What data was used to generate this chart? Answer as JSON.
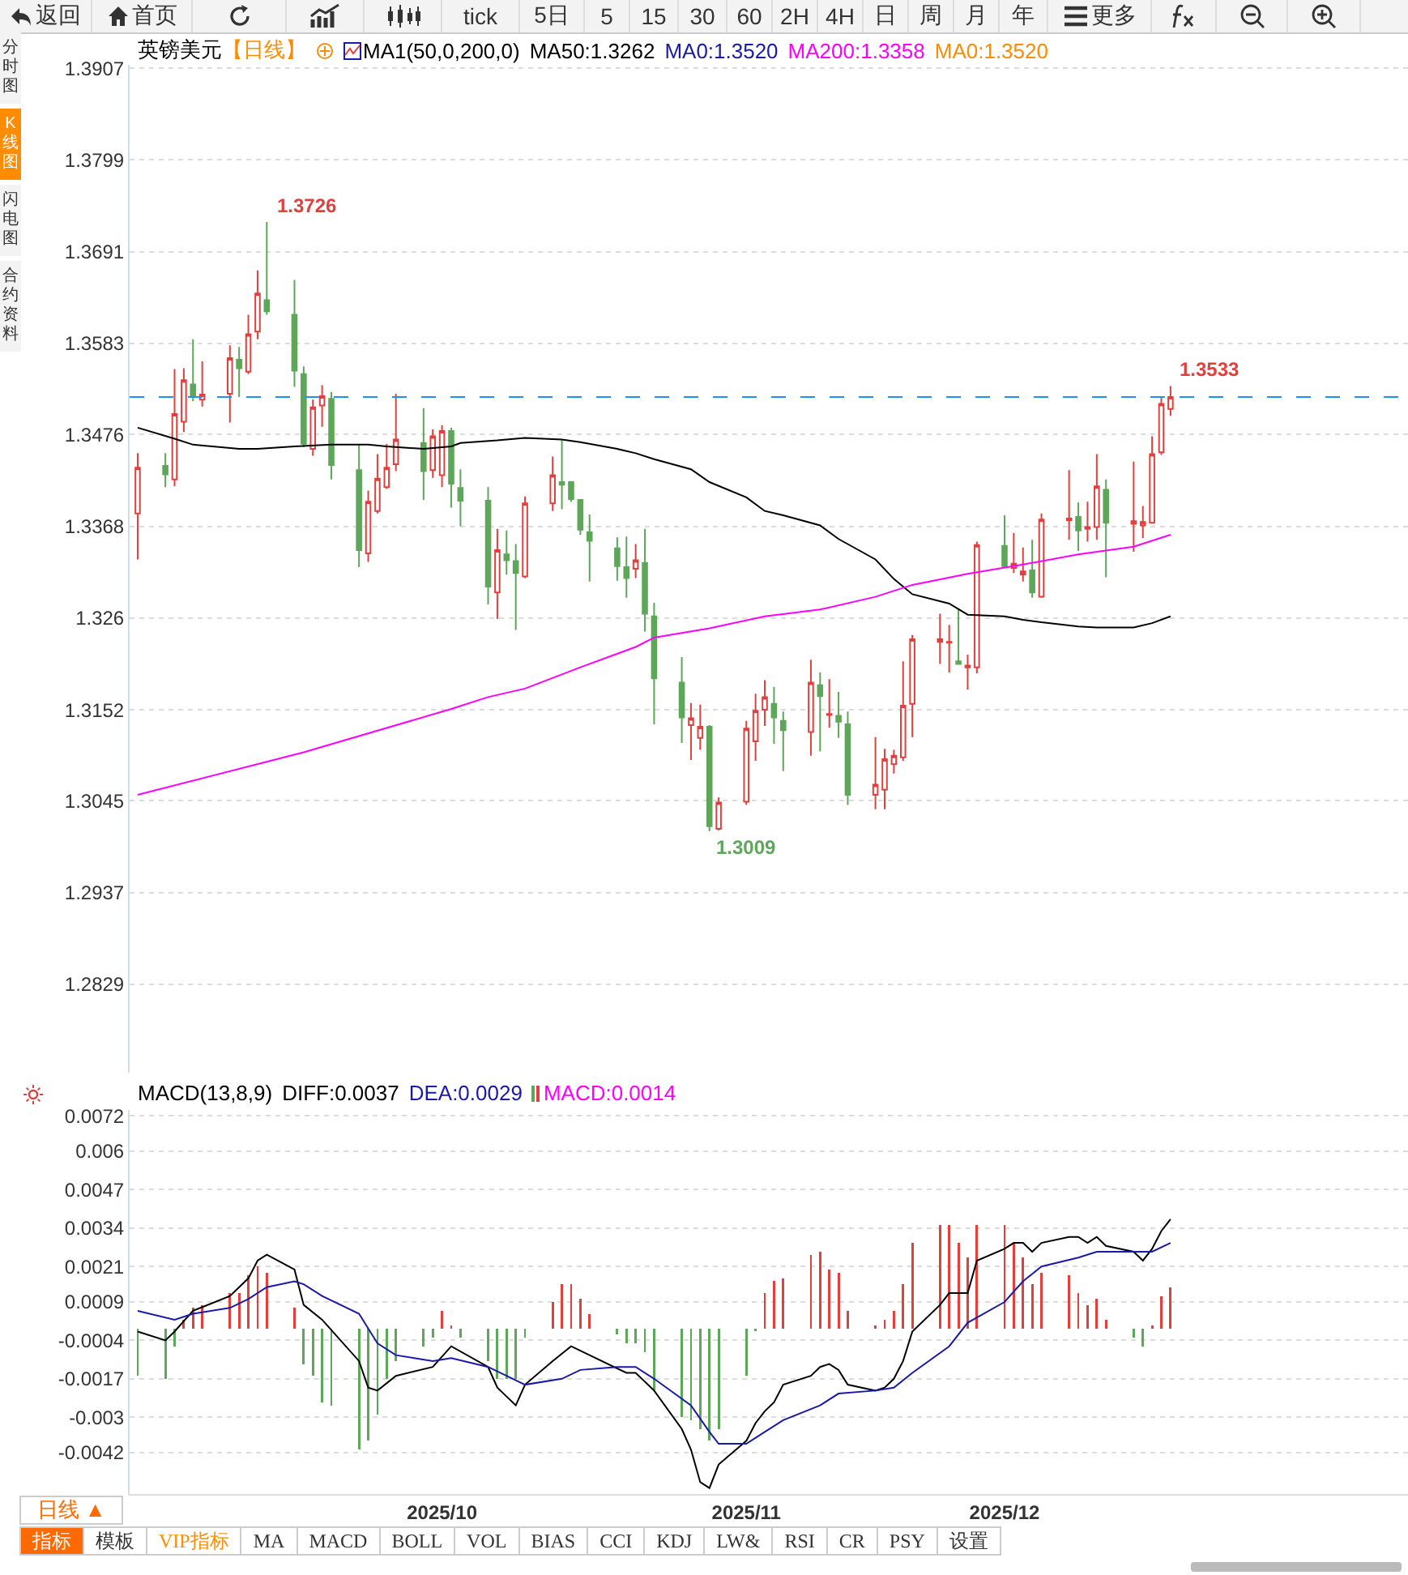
{
  "chart_data": [
    {
      "type": "other",
      "annotations": [
        "返回",
        "首页",
        "tick",
        "5日",
        "5",
        "15",
        "30",
        "60",
        "2H",
        "4H",
        "日",
        "周",
        "月",
        "年",
        "更多"
      ]
    },
    {
      "type": "other",
      "annotations": [
        "分时图",
        "K线图",
        "闪电图",
        "合约资料"
      ]
    },
    {
      "type": "candlestick",
      "title": "英镑美元",
      "subtitle": "【日线】",
      "legend_title": "MA1(50,0,200,0)",
      "legend": "top left",
      "grid": "y",
      "tick_labels": "y",
      "annotations": [
        "MA0:1.3520",
        "MA0:1.3520",
        {
          "text": "1.3726",
          "x": "2025-09-12",
          "y": 1.3726
        },
        {
          "text": "1.3533",
          "x": "2025-12-19",
          "y": 1.3533
        },
        {
          "text": "1.3009",
          "x": "2025-10-30",
          "y": 1.3009
        }
      ],
      "ref_lines": [
        {
          "axis": "y",
          "value": 1.352,
          "color": "#1e90ff",
          "line_style": "dashed"
        }
      ],
      "xlim": [
        "2025-08-28T03:00",
        "2026-01-13T18:00"
      ],
      "ylim": [
        1.2725,
        1.3911
      ],
      "yticks": [
        1.3907,
        1.3799,
        1.3691,
        1.3583,
        1.3476,
        1.3368,
        1.326,
        1.3152,
        1.3045,
        1.2937,
        1.2829
      ],
      "series": [
        {
          "name": "MA50:1.3262",
          "type": "line",
          "color": "#000000",
          "x": [
            "2025-08-29",
            "2025-09-02",
            "2025-09-04",
            "2025-09-09",
            "2025-09-11",
            "2025-09-15",
            "2025-09-19",
            "2025-09-23",
            "2025-09-25",
            "2025-09-29",
            "2025-10-02",
            "2025-10-03",
            "2025-10-07",
            "2025-10-10",
            "2025-10-14",
            "2025-10-16",
            "2025-10-20",
            "2025-10-22",
            "2025-10-24",
            "2025-10-28",
            "2025-10-30",
            "2025-11-03",
            "2025-11-05",
            "2025-11-07",
            "2025-11-11",
            "2025-11-13",
            "2025-11-17",
            "2025-11-19",
            "2025-11-21",
            "2025-11-25",
            "2025-11-27",
            "2025-12-01",
            "2025-12-03",
            "2025-12-05",
            "2025-12-09",
            "2025-12-11",
            "2025-12-15",
            "2025-12-17",
            "2025-12-19"
          ],
          "values": [
            1.3484,
            1.3471,
            1.3464,
            1.3459,
            1.3459,
            1.3462,
            1.3464,
            1.3464,
            1.3462,
            1.3459,
            1.3462,
            1.3466,
            1.3469,
            1.3472,
            1.347,
            1.3467,
            1.3459,
            1.3454,
            1.3447,
            1.3435,
            1.342,
            1.3402,
            1.3386,
            1.3381,
            1.3369,
            1.3353,
            1.3329,
            1.3306,
            1.3288,
            1.3277,
            1.3264,
            1.3262,
            1.3258,
            1.3255,
            1.325,
            1.3249,
            1.3249,
            1.3254,
            1.3262
          ]
        },
        {
          "name": "MA200:1.3358",
          "type": "line",
          "color": "#ff00ff",
          "x": [
            "2025-08-29",
            "2025-09-16",
            "2025-10-02",
            "2025-10-06",
            "2025-10-10",
            "2025-10-16",
            "2025-10-22",
            "2025-10-24",
            "2025-10-30",
            "2025-11-05",
            "2025-11-11",
            "2025-11-17",
            "2025-11-21",
            "2025-11-27",
            "2025-12-03",
            "2025-12-09",
            "2025-12-15",
            "2025-12-19"
          ],
          "values": [
            1.3052,
            1.3102,
            1.3153,
            1.3167,
            1.3177,
            1.3202,
            1.3226,
            1.3237,
            1.3248,
            1.3262,
            1.327,
            1.3285,
            1.3299,
            1.3312,
            1.3323,
            1.3335,
            1.3344,
            1.3358
          ]
        },
        {
          "type": "candlestick",
          "color": "#e0413f",
          "x": [
            "2025-08-29",
            "2025-09-02",
            "2025-09-03",
            "2025-09-05",
            "2025-09-08",
            "2025-09-10",
            "2025-09-11",
            "2025-09-17",
            "2025-09-18",
            "2025-09-23",
            "2025-09-24",
            "2025-09-25",
            "2025-09-26",
            "2025-09-30",
            "2025-10-01",
            "2025-10-07",
            "2025-10-10",
            "2025-10-13",
            "2025-10-22",
            "2025-10-28",
            "2025-10-29",
            "2025-10-31",
            "2025-11-03",
            "2025-11-04",
            "2025-11-05",
            "2025-11-10",
            "2025-11-12",
            "2025-11-17",
            "2025-11-18",
            "2025-11-19",
            "2025-11-20",
            "2025-11-21",
            "2025-11-24",
            "2025-11-25",
            "2025-11-27",
            "2025-11-28",
            "2025-12-02",
            "2025-12-03",
            "2025-12-05",
            "2025-12-08",
            "2025-12-10",
            "2025-12-11",
            "2025-12-15",
            "2025-12-16",
            "2025-12-17",
            "2025-12-18",
            "2025-12-19"
          ],
          "ohlc": [
            [
              1.3383,
              1.3454,
              1.3329,
              1.3437
            ],
            [
              1.3423,
              1.3553,
              1.3415,
              1.35
            ],
            [
              1.3491,
              1.3554,
              1.3479,
              1.354
            ],
            [
              1.3517,
              1.3562,
              1.3509,
              1.3523
            ],
            [
              1.3524,
              1.3581,
              1.349,
              1.3566
            ],
            [
              1.355,
              1.3617,
              1.3547,
              1.3594
            ],
            [
              1.3597,
              1.3669,
              1.3588,
              1.3642
            ],
            [
              1.3459,
              1.3517,
              1.3451,
              1.3508
            ],
            [
              1.351,
              1.3534,
              1.3485,
              1.3521
            ],
            [
              1.3336,
              1.341,
              1.3326,
              1.3397
            ],
            [
              1.3386,
              1.3453,
              1.3383,
              1.3424
            ],
            [
              1.3414,
              1.3465,
              1.3412,
              1.3437
            ],
            [
              1.3441,
              1.3524,
              1.3433,
              1.347
            ],
            [
              1.3434,
              1.3482,
              1.3425,
              1.3474
            ],
            [
              1.3428,
              1.3487,
              1.3414,
              1.348
            ],
            [
              1.329,
              1.3365,
              1.3259,
              1.334
            ],
            [
              1.3309,
              1.3403,
              1.3307,
              1.3395
            ],
            [
              1.3395,
              1.345,
              1.3386,
              1.3428
            ],
            [
              1.3318,
              1.3347,
              1.3307,
              1.3328
            ],
            [
              1.3134,
              1.316,
              1.3093,
              1.3142
            ],
            [
              1.3119,
              1.3158,
              1.3105,
              1.3132
            ],
            [
              1.3012,
              1.3049,
              1.301,
              1.3043
            ],
            [
              1.3044,
              1.3139,
              1.304,
              1.313
            ],
            [
              1.3115,
              1.3171,
              1.3092,
              1.3151
            ],
            [
              1.3152,
              1.3187,
              1.3133,
              1.3167
            ],
            [
              1.3126,
              1.3211,
              1.3098,
              1.3184
            ],
            [
              1.3146,
              1.3188,
              1.3131,
              1.3147
            ],
            [
              1.3052,
              1.312,
              1.3035,
              1.3064
            ],
            [
              1.3058,
              1.3106,
              1.3035,
              1.3094
            ],
            [
              1.3088,
              1.3105,
              1.3077,
              1.3098
            ],
            [
              1.3096,
              1.3209,
              1.3092,
              1.3157
            ],
            [
              1.3159,
              1.324,
              1.312,
              1.3235
            ],
            [
              1.3232,
              1.3265,
              1.3206,
              1.3235
            ],
            [
              1.3231,
              1.3252,
              1.3196,
              1.3232
            ],
            [
              1.3202,
              1.3217,
              1.3176,
              1.3204
            ],
            [
              1.3202,
              1.335,
              1.3195,
              1.3346
            ],
            [
              1.3319,
              1.336,
              1.3313,
              1.3324
            ],
            [
              1.3311,
              1.3343,
              1.3303,
              1.3315
            ],
            [
              1.3285,
              1.3383,
              1.3284,
              1.3376
            ],
            [
              1.3375,
              1.3434,
              1.3352,
              1.3377
            ],
            [
              1.3365,
              1.3397,
              1.335,
              1.3367
            ],
            [
              1.3367,
              1.3453,
              1.3352,
              1.3415
            ],
            [
              1.3371,
              1.3444,
              1.3338,
              1.3374
            ],
            [
              1.3369,
              1.3392,
              1.3354,
              1.3373
            ],
            [
              1.3372,
              1.3474,
              1.3371,
              1.3453
            ],
            [
              1.3455,
              1.352,
              1.3452,
              1.3512
            ],
            [
              1.3506,
              1.3533,
              1.3498,
              1.352
            ]
          ]
        },
        {
          "type": "candlestick",
          "color": "#5ea65a",
          "x": [
            "2025-09-01",
            "2025-09-04",
            "2025-09-09",
            "2025-09-12",
            "2025-09-15",
            "2025-09-16",
            "2025-09-19",
            "2025-09-22",
            "2025-09-29",
            "2025-10-02",
            "2025-10-03",
            "2025-10-06",
            "2025-10-08",
            "2025-10-09",
            "2025-10-14",
            "2025-10-15",
            "2025-10-16",
            "2025-10-17",
            "2025-10-20",
            "2025-10-21",
            "2025-10-23",
            "2025-10-24",
            "2025-10-27",
            "2025-10-30",
            "2025-11-06",
            "2025-11-07",
            "2025-11-11",
            "2025-11-13",
            "2025-11-14",
            "2025-11-26",
            "2025-12-01",
            "2025-12-04",
            "2025-12-09",
            "2025-12-12"
          ],
          "ohlc": [
            [
              1.3439,
              1.3454,
              1.3414,
              1.3429
            ],
            [
              1.3535,
              1.3588,
              1.3515,
              1.3522
            ],
            [
              1.3564,
              1.3579,
              1.352,
              1.3554
            ],
            [
              1.3634,
              1.3726,
              1.3617,
              1.3621
            ],
            [
              1.3617,
              1.3658,
              1.3532,
              1.3551
            ],
            [
              1.3547,
              1.3556,
              1.3461,
              1.3465
            ],
            [
              1.3518,
              1.3526,
              1.3423,
              1.344
            ],
            [
              1.3434,
              1.3464,
              1.332,
              1.334
            ],
            [
              1.3466,
              1.3507,
              1.3399,
              1.3433
            ],
            [
              1.348,
              1.3484,
              1.339,
              1.3418
            ],
            [
              1.3413,
              1.3435,
              1.3368,
              1.3398
            ],
            [
              1.3398,
              1.3414,
              1.3276,
              1.3297
            ],
            [
              1.3335,
              1.3363,
              1.3311,
              1.3328
            ],
            [
              1.3327,
              1.3347,
              1.3246,
              1.3313
            ],
            [
              1.342,
              1.3469,
              1.3388,
              1.3417
            ],
            [
              1.342,
              1.3421,
              1.3397,
              1.34
            ],
            [
              1.3399,
              1.34,
              1.3358,
              1.3364
            ],
            [
              1.3361,
              1.3382,
              1.3303,
              1.3351
            ],
            [
              1.3342,
              1.3355,
              1.3304,
              1.3321
            ],
            [
              1.332,
              1.3356,
              1.3284,
              1.3307
            ],
            [
              1.3325,
              1.3365,
              1.3244,
              1.3265
            ],
            [
              1.3262,
              1.3278,
              1.3135,
              1.3189
            ],
            [
              1.3184,
              1.3214,
              1.3113,
              1.3143
            ],
            [
              1.3132,
              1.3134,
              1.3009,
              1.3015
            ],
            [
              1.3159,
              1.3179,
              1.3112,
              1.3143
            ],
            [
              1.3139,
              1.315,
              1.308,
              1.3128
            ],
            [
              1.3181,
              1.3196,
              1.3103,
              1.3168
            ],
            [
              1.3145,
              1.3173,
              1.3119,
              1.3138
            ],
            [
              1.3135,
              1.315,
              1.304,
              1.3052
            ],
            [
              1.3209,
              1.327,
              1.3205,
              1.3206
            ],
            [
              1.3345,
              1.3381,
              1.332,
              1.3321
            ],
            [
              1.3316,
              1.3352,
              1.3284,
              1.329
            ],
            [
              1.3379,
              1.3396,
              1.3339,
              1.3363
            ],
            [
              1.3411,
              1.3423,
              1.3308,
              1.3372
            ]
          ]
        }
      ]
    },
    {
      "type": "bar",
      "title": "MACD(13,8,9)",
      "legend": "top left",
      "grid": "y",
      "xlim": [
        "2025-08-28T03:00",
        "2026-01-13T18:00"
      ],
      "xticks": [
        {
          "value": "2025-10-01",
          "label": "2025/10"
        },
        {
          "value": "2025-11-03",
          "label": "2025/11"
        },
        {
          "value": "2025-12-01",
          "label": "2025/12"
        }
      ],
      "ylim": [
        -0.0056,
        0.0074
      ],
      "yticks": [
        0.0072,
        0.006,
        0.0047,
        0.0034,
        0.0021,
        0.0009,
        -0.0004,
        -0.0017,
        -0.003,
        -0.0042
      ],
      "series": [
        {
          "name": "DIFF:0.0037",
          "type": "line",
          "color": "#000000",
          "x": [
            "2025-08-29",
            "2025-09-01",
            "2025-09-02",
            "2025-09-04",
            "2025-09-08",
            "2025-09-10",
            "2025-09-11",
            "2025-09-12",
            "2025-09-15",
            "2025-09-16",
            "2025-09-18",
            "2025-09-22",
            "2025-09-23",
            "2025-09-24",
            "2025-09-26",
            "2025-09-30",
            "2025-10-02",
            "2025-10-06",
            "2025-10-07",
            "2025-10-09",
            "2025-10-10",
            "2025-10-13",
            "2025-10-15",
            "2025-10-17",
            "2025-10-21",
            "2025-10-22",
            "2025-10-24",
            "2025-10-27",
            "2025-10-28",
            "2025-10-29",
            "2025-10-30",
            "2025-10-31",
            "2025-11-03",
            "2025-11-04",
            "2025-11-05",
            "2025-11-06",
            "2025-11-07",
            "2025-11-10",
            "2025-11-11",
            "2025-11-12",
            "2025-11-13",
            "2025-11-14",
            "2025-11-17",
            "2025-11-18",
            "2025-11-19",
            "2025-11-20",
            "2025-11-21",
            "2025-11-24",
            "2025-11-25",
            "2025-11-26",
            "2025-11-27",
            "2025-11-28",
            "2025-12-01",
            "2025-12-02",
            "2025-12-03",
            "2025-12-04",
            "2025-12-05",
            "2025-12-08",
            "2025-12-09",
            "2025-12-10",
            "2025-12-11",
            "2025-12-12",
            "2025-12-15",
            "2025-12-16",
            "2025-12-17",
            "2025-12-18",
            "2025-12-19"
          ],
          "values": [
            -0.0001,
            -0.0004,
            -0.0001,
            0.0006,
            0.0011,
            0.0017,
            0.0023,
            0.0025,
            0.002,
            0.0008,
            0.0003,
            -0.0011,
            -0.002,
            -0.0021,
            -0.0016,
            -0.0013,
            -0.0006,
            -0.0013,
            -0.002,
            -0.0026,
            -0.0019,
            -0.0011,
            -0.0006,
            -0.0009,
            -0.0015,
            -0.0015,
            -0.0021,
            -0.0034,
            -0.0041,
            -0.0052,
            -0.0054,
            -0.0046,
            -0.0038,
            -0.0032,
            -0.0028,
            -0.0025,
            -0.0019,
            -0.0016,
            -0.0013,
            -0.0012,
            -0.0014,
            -0.0019,
            -0.0021,
            -0.002,
            -0.0017,
            -0.0011,
            -0.0001,
            0.0008,
            0.0012,
            0.0012,
            0.0012,
            0.0023,
            0.0027,
            0.0029,
            0.0029,
            0.0026,
            0.0029,
            0.0031,
            0.0031,
            0.0029,
            0.0031,
            0.0028,
            0.0026,
            0.0023,
            0.0027,
            0.0033,
            0.0037
          ]
        },
        {
          "name": "DEA:0.0029",
          "type": "line",
          "color": "#1a1aa6",
          "x": [
            "2025-08-29",
            "2025-09-02",
            "2025-09-04",
            "2025-09-08",
            "2025-09-10",
            "2025-09-12",
            "2025-09-15",
            "2025-09-16",
            "2025-09-18",
            "2025-09-22",
            "2025-09-24",
            "2025-09-26",
            "2025-09-30",
            "2025-10-02",
            "2025-10-06",
            "2025-10-08",
            "2025-10-10",
            "2025-10-14",
            "2025-10-16",
            "2025-10-20",
            "2025-10-22",
            "2025-10-24",
            "2025-10-28",
            "2025-10-30",
            "2025-10-31",
            "2025-11-03",
            "2025-11-05",
            "2025-11-07",
            "2025-11-11",
            "2025-11-13",
            "2025-11-17",
            "2025-11-19",
            "2025-11-21",
            "2025-11-25",
            "2025-11-27",
            "2025-12-01",
            "2025-12-03",
            "2025-12-05",
            "2025-12-09",
            "2025-12-11",
            "2025-12-15",
            "2025-12-17",
            "2025-12-19"
          ],
          "values": [
            0.0006,
            0.0003,
            0.0005,
            0.0007,
            0.001,
            0.0014,
            0.0016,
            0.0015,
            0.0011,
            0.0005,
            -0.0005,
            -0.0009,
            -0.0011,
            -0.001,
            -0.0013,
            -0.0016,
            -0.0019,
            -0.0017,
            -0.0014,
            -0.0013,
            -0.0013,
            -0.0017,
            -0.0026,
            -0.0035,
            -0.0039,
            -0.0039,
            -0.0035,
            -0.0031,
            -0.0026,
            -0.0022,
            -0.0021,
            -0.002,
            -0.0015,
            -0.0006,
            0.0002,
            0.0009,
            0.0016,
            0.0021,
            0.0024,
            0.0026,
            0.0026,
            0.0026,
            0.0029
          ]
        },
        {
          "name": "MACD:0.0014",
          "type": "bar",
          "color": "#ff00ff",
          "x": [
            "2025-08-29",
            "2025-09-01",
            "2025-09-02",
            "2025-09-03",
            "2025-09-04",
            "2025-09-05",
            "2025-09-08",
            "2025-09-09",
            "2025-09-10",
            "2025-09-11",
            "2025-09-12",
            "2025-09-15",
            "2025-09-16",
            "2025-09-17",
            "2025-09-18",
            "2025-09-19",
            "2025-09-22",
            "2025-09-23",
            "2025-09-24",
            "2025-09-25",
            "2025-09-26",
            "2025-09-29",
            "2025-09-30",
            "2025-10-01",
            "2025-10-02",
            "2025-10-03",
            "2025-10-06",
            "2025-10-07",
            "2025-10-08",
            "2025-10-09",
            "2025-10-10",
            "2025-10-13",
            "2025-10-14",
            "2025-10-15",
            "2025-10-16",
            "2025-10-17",
            "2025-10-20",
            "2025-10-21",
            "2025-10-22",
            "2025-10-23",
            "2025-10-24",
            "2025-10-27",
            "2025-10-28",
            "2025-10-29",
            "2025-10-30",
            "2025-10-31",
            "2025-11-03",
            "2025-11-04",
            "2025-11-05",
            "2025-11-06",
            "2025-11-07",
            "2025-11-10",
            "2025-11-11",
            "2025-11-12",
            "2025-11-13",
            "2025-11-14",
            "2025-11-17",
            "2025-11-18",
            "2025-11-19",
            "2025-11-20",
            "2025-11-21",
            "2025-11-24",
            "2025-11-25",
            "2025-11-26",
            "2025-11-27",
            "2025-11-28",
            "2025-12-01",
            "2025-12-02",
            "2025-12-03",
            "2025-12-04",
            "2025-12-05",
            "2025-12-08",
            "2025-12-09",
            "2025-12-10",
            "2025-12-11",
            "2025-12-12",
            "2025-12-15",
            "2025-12-16",
            "2025-12-17",
            "2025-12-18",
            "2025-12-19"
          ],
          "values": [
            -0.0016,
            -0.0017,
            -0.0006,
            0.0003,
            0.0007,
            0.0008,
            0.0012,
            0.0012,
            0.0018,
            0.0021,
            0.0019,
            0.0007,
            -0.0012,
            -0.0016,
            -0.0025,
            -0.0026,
            -0.0041,
            -0.0038,
            -0.0029,
            -0.0017,
            -0.0011,
            -0.0006,
            -0.0003,
            0.0006,
            0.0001,
            -0.0003,
            -0.0011,
            -0.0017,
            -0.0017,
            -0.0017,
            -0.0003,
            0.0009,
            0.0015,
            0.0015,
            0.001,
            0.0005,
            -0.0002,
            -0.0005,
            -0.0005,
            -0.0008,
            -0.0021,
            -0.003,
            -0.0031,
            -0.0034,
            -0.0038,
            -0.0034,
            -0.0016,
            -0.0001,
            0.0012,
            0.0016,
            0.0017,
            0.0025,
            0.0026,
            0.002,
            0.0019,
            0.0006,
            0.0001,
            0.0003,
            0.0006,
            0.0015,
            0.0029,
            0.0035,
            0.0035,
            0.0029,
            0.0024,
            0.0035,
            0.0035,
            0.0029,
            0.0024,
            0.0015,
            0.0019,
            0.0018,
            0.0012,
            0.0008,
            0.001,
            0.0003,
            -0.0003,
            -0.0006,
            0.0001,
            0.0011,
            0.0014
          ],
          "colors": [
            "#5ea65a",
            "#5ea65a",
            "#5ea65a",
            "#e0413f",
            "#e0413f",
            "#e0413f",
            "#e0413f",
            "#e0413f",
            "#e0413f",
            "#e0413f",
            "#e0413f",
            "#e0413f",
            "#5ea65a",
            "#5ea65a",
            "#5ea65a",
            "#5ea65a",
            "#5ea65a",
            "#5ea65a",
            "#5ea65a",
            "#5ea65a",
            "#5ea65a",
            "#5ea65a",
            "#5ea65a",
            "#e0413f",
            "#e0413f",
            "#5ea65a",
            "#5ea65a",
            "#5ea65a",
            "#5ea65a",
            "#5ea65a",
            "#5ea65a",
            "#e0413f",
            "#e0413f",
            "#e0413f",
            "#e0413f",
            "#e0413f",
            "#5ea65a",
            "#5ea65a",
            "#5ea65a",
            "#5ea65a",
            "#5ea65a",
            "#5ea65a",
            "#5ea65a",
            "#5ea65a",
            "#5ea65a",
            "#5ea65a",
            "#5ea65a",
            "#5ea65a",
            "#e0413f",
            "#e0413f",
            "#e0413f",
            "#e0413f",
            "#e0413f",
            "#e0413f",
            "#e0413f",
            "#e0413f",
            "#e0413f",
            "#e0413f",
            "#e0413f",
            "#e0413f",
            "#e0413f",
            "#e0413f",
            "#e0413f",
            "#e0413f",
            "#e0413f",
            "#e0413f",
            "#e0413f",
            "#e0413f",
            "#e0413f",
            "#e0413f",
            "#e0413f",
            "#e0413f",
            "#e0413f",
            "#e0413f",
            "#e0413f",
            "#e0413f",
            "#5ea65a",
            "#5ea65a",
            "#e0413f",
            "#e0413f",
            "#e0413f"
          ]
        }
      ]
    },
    {
      "type": "other",
      "annotations": [
        "日线 ▲",
        "指标",
        "模板",
        "VIP指标",
        "MA",
        "MACD",
        "BOLL",
        "VOL",
        "BIAS",
        "CCI",
        "KDJ",
        "LW&",
        "RSI",
        "CR",
        "PSY",
        "设置"
      ]
    }
  ]
}
